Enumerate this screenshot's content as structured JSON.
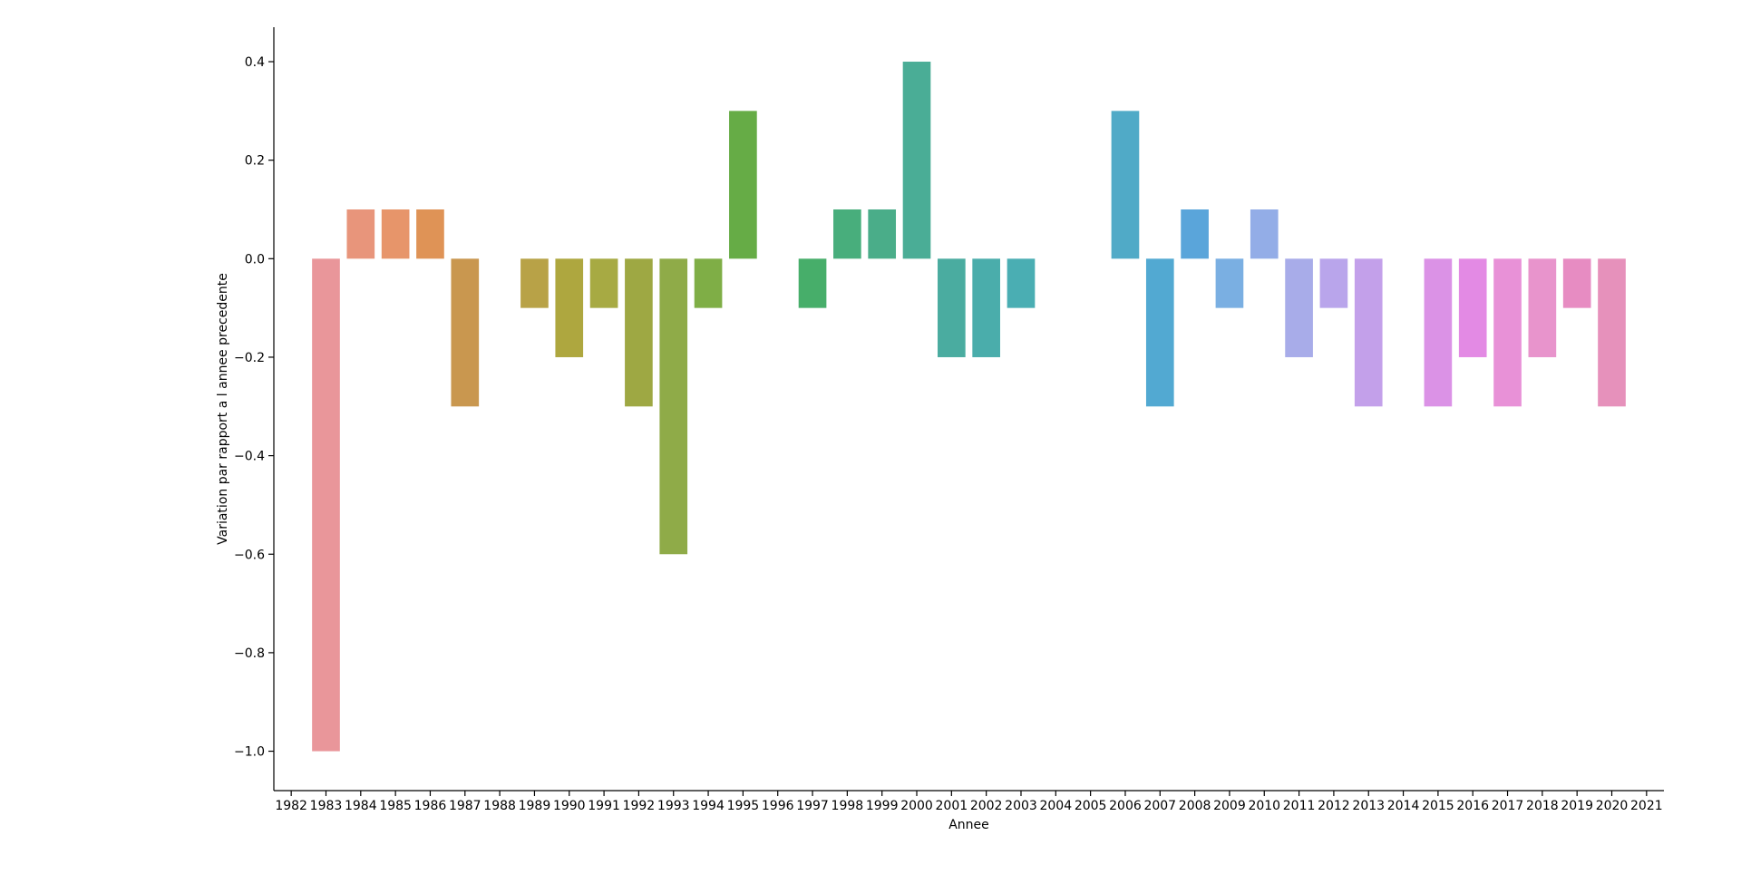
{
  "chart_data": {
    "type": "bar",
    "xlabel": "Annee",
    "ylabel": "Variation par rapport a l annee precedente",
    "ylim": [
      -1.08,
      0.47
    ],
    "yticks": [
      -1.0,
      -0.8,
      -0.6,
      -0.4,
      -0.2,
      0.0,
      0.2,
      0.4
    ],
    "ytick_labels": [
      "−1.0",
      "−0.8",
      "−0.6",
      "−0.4",
      "−0.2",
      "0.0",
      "0.2",
      "0.4"
    ],
    "categories": [
      "1982",
      "1983",
      "1984",
      "1985",
      "1986",
      "1987",
      "1988",
      "1989",
      "1990",
      "1991",
      "1992",
      "1993",
      "1994",
      "1995",
      "1996",
      "1997",
      "1998",
      "1999",
      "2000",
      "2001",
      "2002",
      "2003",
      "2004",
      "2005",
      "2006",
      "2007",
      "2008",
      "2009",
      "2010",
      "2011",
      "2012",
      "2013",
      "2014",
      "2015",
      "2016",
      "2017",
      "2018",
      "2019",
      "2020",
      "2021"
    ],
    "values": [
      0,
      -1.0,
      0.1,
      0.1,
      0.1,
      -0.3,
      0,
      -0.1,
      -0.2,
      -0.1,
      -0.3,
      -0.6,
      -0.1,
      0.3,
      0,
      -0.1,
      0.1,
      0.1,
      0.4,
      -0.2,
      -0.2,
      -0.1,
      0,
      0,
      0.3,
      -0.3,
      0.1,
      -0.1,
      0.1,
      -0.2,
      -0.1,
      -0.3,
      0,
      -0.3,
      -0.2,
      -0.3,
      -0.2,
      -0.1,
      -0.3,
      0
    ],
    "colors": [
      "#f77189",
      "#e9969a",
      "#e8957b",
      "#e7956a",
      "#df9356",
      "#c9974f",
      "#bb9c45",
      "#b8a247",
      "#aea73f",
      "#a7aa43",
      "#9ea843",
      "#8fab48",
      "#7fae46",
      "#66ac46",
      "#52ae58",
      "#47ae6a",
      "#48ae7c",
      "#4aad89",
      "#4aad96",
      "#4aaca0",
      "#4aadab",
      "#4aaeb3",
      "#4aaeba",
      "#4cacc2",
      "#50aac7",
      "#52a9d2",
      "#5aa5da",
      "#7aafe2",
      "#93ade7",
      "#a8ace9",
      "#b9a5eb",
      "#c3a0ea",
      "#d195e9",
      "#db92e6",
      "#e38ae4",
      "#e891d7",
      "#e894cc",
      "#e78cc2",
      "#e691bb",
      "#e498b7"
    ],
    "grid": false,
    "legend": "none"
  }
}
